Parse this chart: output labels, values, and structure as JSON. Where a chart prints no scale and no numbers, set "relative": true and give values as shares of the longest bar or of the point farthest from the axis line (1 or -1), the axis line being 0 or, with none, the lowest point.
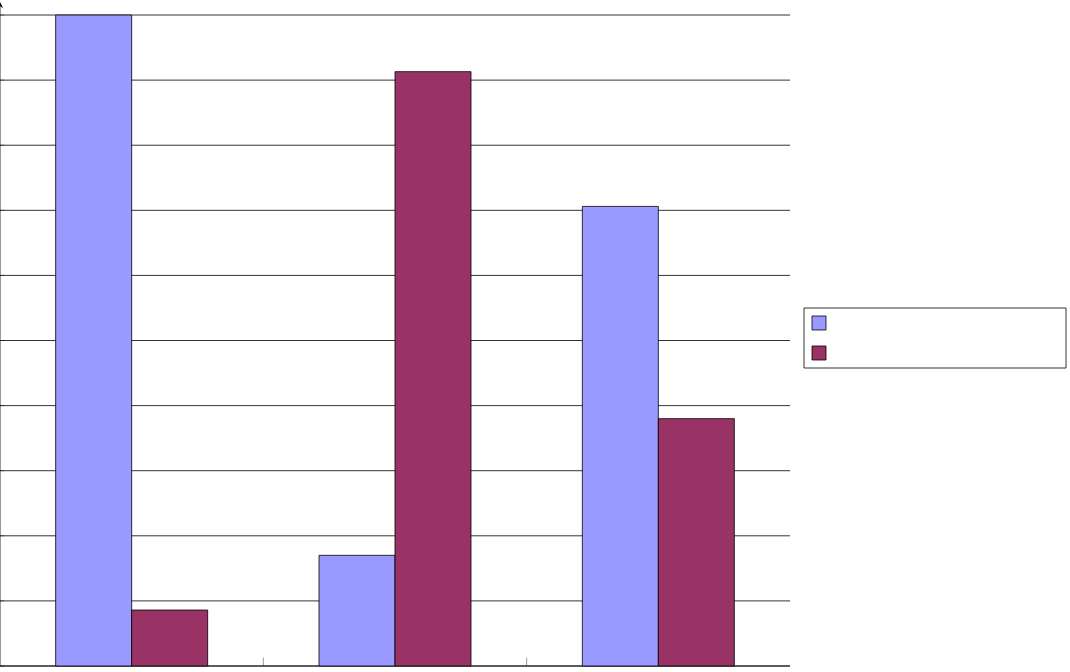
{
  "chart_data": {
    "type": "bar",
    "relative": true,
    "categories": [
      null,
      null,
      null
    ],
    "series": [
      {
        "color": "#9999ff",
        "values": [
          1,
          0.17,
          0.706
        ]
      },
      {
        "color": "#993366",
        "values": [
          0.086,
          0.913,
          0.38
        ]
      }
    ],
    "grid": "y"
  }
}
